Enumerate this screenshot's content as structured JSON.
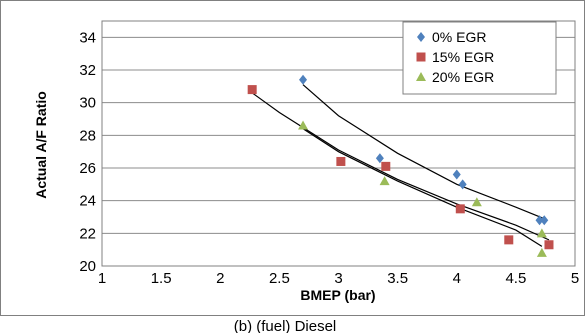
{
  "chart_data": {
    "type": "scatter",
    "title": "",
    "xlabel": "BMEP (bar)",
    "ylabel": "Actual A/F Ratio",
    "xlim": [
      1,
      5
    ],
    "ylim": [
      20,
      35
    ],
    "x_ticks": [
      "1",
      "1.5",
      "2",
      "2.5",
      "3",
      "3.5",
      "4",
      "4.5",
      "5"
    ],
    "y_ticks": [
      "20",
      "22",
      "24",
      "26",
      "28",
      "30",
      "32",
      "34"
    ],
    "grid": "horizontal",
    "legend_position": "top-right",
    "series": [
      {
        "name": "0% EGR",
        "marker": "diamond",
        "color": "#4f81bd",
        "points": [
          [
            2.7,
            31.4
          ],
          [
            3.35,
            26.6
          ],
          [
            4.0,
            25.6
          ],
          [
            4.05,
            25.0
          ],
          [
            4.7,
            22.8
          ],
          [
            4.74,
            22.8
          ]
        ],
        "trendline": [
          [
            2.7,
            31.1
          ],
          [
            3.0,
            29.2
          ],
          [
            3.5,
            26.9
          ],
          [
            4.0,
            25.0
          ],
          [
            4.5,
            23.6
          ],
          [
            4.74,
            22.9
          ]
        ]
      },
      {
        "name": "15% EGR",
        "marker": "square",
        "color": "#c0504d",
        "points": [
          [
            2.27,
            30.8
          ],
          [
            3.02,
            26.4
          ],
          [
            3.4,
            26.1
          ],
          [
            4.03,
            23.5
          ],
          [
            4.44,
            21.6
          ],
          [
            4.78,
            21.3
          ]
        ],
        "trendline": [
          [
            2.27,
            30.6
          ],
          [
            2.5,
            29.4
          ],
          [
            3.0,
            27.1
          ],
          [
            3.5,
            25.3
          ],
          [
            4.0,
            23.8
          ],
          [
            4.5,
            22.5
          ],
          [
            4.78,
            21.6
          ]
        ]
      },
      {
        "name": "20% EGR",
        "marker": "triangle",
        "color": "#9bbb59",
        "points": [
          [
            2.7,
            28.6
          ],
          [
            3.39,
            25.2
          ],
          [
            4.17,
            23.9
          ],
          [
            4.72,
            22.0
          ],
          [
            4.72,
            20.8
          ]
        ],
        "trendline": [
          [
            2.7,
            28.4
          ],
          [
            3.0,
            27.0
          ],
          [
            3.5,
            25.2
          ],
          [
            4.0,
            23.6
          ],
          [
            4.5,
            22.2
          ],
          [
            4.72,
            21.2
          ]
        ]
      }
    ]
  },
  "caption": "(b) (fuel) Diesel"
}
